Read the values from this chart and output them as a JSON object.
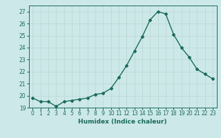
{
  "x": [
    0,
    1,
    2,
    3,
    4,
    5,
    6,
    7,
    8,
    9,
    10,
    11,
    12,
    13,
    14,
    15,
    16,
    17,
    18,
    19,
    20,
    21,
    22,
    23
  ],
  "y": [
    19.8,
    19.5,
    19.5,
    19.1,
    19.5,
    19.6,
    19.7,
    19.8,
    20.1,
    20.2,
    20.6,
    21.5,
    22.5,
    23.7,
    24.9,
    26.3,
    27.0,
    26.8,
    25.1,
    24.0,
    23.2,
    22.2,
    21.8,
    21.4
  ],
  "line_color": "#1a6b5a",
  "marker": "D",
  "marker_size": 2.0,
  "linewidth": 1.0,
  "xlabel": "Humidex (Indice chaleur)",
  "ylim": [
    19,
    27.5
  ],
  "xlim": [
    -0.5,
    23.5
  ],
  "yticks": [
    19,
    20,
    21,
    22,
    23,
    24,
    25,
    26,
    27
  ],
  "xticks": [
    0,
    1,
    2,
    3,
    4,
    5,
    6,
    7,
    8,
    9,
    10,
    11,
    12,
    13,
    14,
    15,
    16,
    17,
    18,
    19,
    20,
    21,
    22,
    23
  ],
  "bg_color": "#cce8e8",
  "grid_color": "#c0d8d8",
  "tick_color": "#1a6b5a",
  "label_color": "#1a6b5a",
  "xlabel_fontsize": 6.5,
  "tick_fontsize": 5.5
}
